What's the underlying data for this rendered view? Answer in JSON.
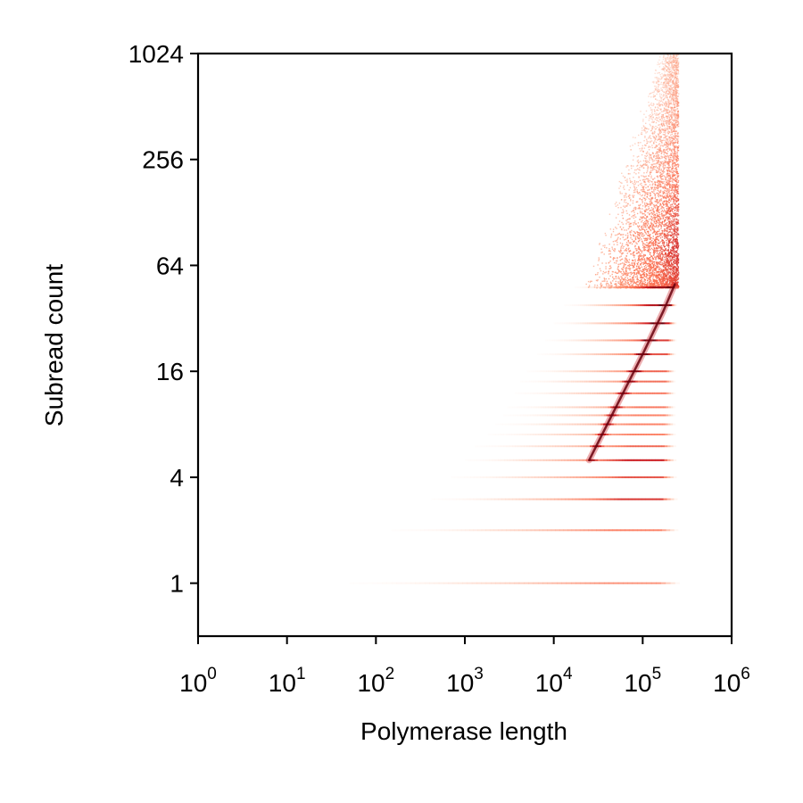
{
  "chart_data": {
    "type": "heatmap",
    "title": "",
    "xlabel": "Polymerase length",
    "ylabel": "Subread count",
    "x_scale": "log10",
    "y_scale": "log2",
    "xlim": [
      1,
      1000000
    ],
    "ylim": [
      0.5,
      1024
    ],
    "x_ticks": [
      {
        "value": 1,
        "base": "10",
        "exp": "0"
      },
      {
        "value": 10,
        "base": "10",
        "exp": "1"
      },
      {
        "value": 100,
        "base": "10",
        "exp": "2"
      },
      {
        "value": 1000,
        "base": "10",
        "exp": "3"
      },
      {
        "value": 10000,
        "base": "10",
        "exp": "4"
      },
      {
        "value": 100000,
        "base": "10",
        "exp": "5"
      },
      {
        "value": 1000000,
        "base": "10",
        "exp": "6"
      }
    ],
    "y_ticks": [
      {
        "value": 1,
        "label": "1"
      },
      {
        "value": 4,
        "label": "4"
      },
      {
        "value": 16,
        "label": "16"
      },
      {
        "value": 64,
        "label": "64"
      },
      {
        "value": 256,
        "label": "256"
      },
      {
        "value": 1024,
        "label": "1024"
      }
    ],
    "grid": false,
    "colormap": "Reds",
    "colormap_stops": [
      "#fff5f0",
      "#fcbba1",
      "#fc9272",
      "#fb6a4a",
      "#cb181d",
      "#67000d"
    ],
    "bands": [
      {
        "subreads": 1,
        "x_min": 50,
        "x_max": 260000,
        "density": 0.55
      },
      {
        "subreads": 2,
        "x_min": 150,
        "x_max": 250000,
        "density": 0.6
      },
      {
        "subreads": 3,
        "x_min": 420,
        "x_max": 245000,
        "density": 0.75
      },
      {
        "subreads": 4,
        "x_min": 700,
        "x_max": 240000,
        "density": 0.7
      },
      {
        "subreads": 5,
        "x_min": 1000,
        "x_max": 238000,
        "density": 0.8
      },
      {
        "subreads": 6,
        "x_min": 1300,
        "x_max": 236000,
        "density": 0.65
      },
      {
        "subreads": 7,
        "x_min": 1800,
        "x_max": 234000,
        "density": 0.6
      },
      {
        "subreads": 8,
        "x_min": 2200,
        "x_max": 232000,
        "density": 0.6
      },
      {
        "subreads": 9,
        "x_min": 2700,
        "x_max": 232000,
        "density": 0.6
      },
      {
        "subreads": 10,
        "x_min": 3000,
        "x_max": 232000,
        "density": 0.62
      },
      {
        "subreads": 12,
        "x_min": 3600,
        "x_max": 232000,
        "density": 0.62
      },
      {
        "subreads": 14,
        "x_min": 4200,
        "x_max": 232000,
        "density": 0.64
      },
      {
        "subreads": 16,
        "x_min": 5000,
        "x_max": 232000,
        "density": 0.66
      },
      {
        "subreads": 20,
        "x_min": 6500,
        "x_max": 235000,
        "density": 0.7
      },
      {
        "subreads": 24,
        "x_min": 8000,
        "x_max": 238000,
        "density": 0.74
      },
      {
        "subreads": 30,
        "x_min": 10000,
        "x_max": 240000,
        "density": 0.8
      },
      {
        "subreads": 38,
        "x_min": 13000,
        "x_max": 242000,
        "density": 0.85
      },
      {
        "subreads": 48,
        "x_min": 17000,
        "x_max": 245000,
        "density": 0.9
      }
    ],
    "density_ridge": [
      {
        "x": 25000,
        "y": 5
      },
      {
        "x": 50000,
        "y": 10
      },
      {
        "x": 100000,
        "y": 20
      },
      {
        "x": 170000,
        "y": 35
      },
      {
        "x": 230000,
        "y": 50
      }
    ],
    "upper_cloud": {
      "x_min": 20000,
      "x_max": 250000,
      "y_min": 48,
      "y_max": 1024,
      "peak_y": 80
    }
  }
}
